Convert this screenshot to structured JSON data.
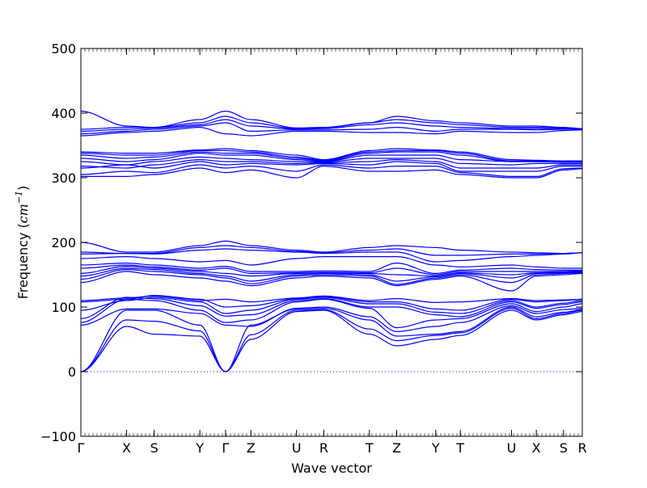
{
  "chart_data": {
    "type": "line",
    "xlabel": "Wave vector",
    "ylabel_prefix": "Frequency (",
    "ylabel_unit": "cm",
    "ylabel_exp": "−1",
    "ylabel_suffix": ")",
    "ylim": [
      -100,
      500
    ],
    "yticks": [
      -100,
      0,
      100,
      200,
      300,
      400,
      500
    ],
    "xlim": [
      0,
      1
    ],
    "grid": false,
    "legend": "none",
    "line_color": "#0000ff",
    "zero_line_color": "#0000ff",
    "high_symmetry_points": [
      {
        "label": "Γ",
        "x": 0.0
      },
      {
        "label": "X",
        "x": 0.0911
      },
      {
        "label": "S",
        "x": 0.1462
      },
      {
        "label": "Y",
        "x": 0.2373
      },
      {
        "label": "Γ",
        "x": 0.2885
      },
      {
        "label": "Z",
        "x": 0.3391
      },
      {
        "label": "U",
        "x": 0.4301
      },
      {
        "label": "R",
        "x": 0.4845
      },
      {
        "label": "T",
        "x": 0.5755
      },
      {
        "label": "Z",
        "x": 0.6299
      },
      {
        "label": "Y",
        "x": 0.7077
      },
      {
        "label": "T",
        "x": 0.7567
      },
      {
        "label": "U",
        "x": 0.8588
      },
      {
        "label": "X",
        "x": 0.9083
      },
      {
        "label": "S",
        "x": 0.9627
      },
      {
        "label": "R",
        "x": 1.0
      }
    ],
    "series": [
      {
        "values": [
          0,
          70,
          58,
          55,
          0,
          50,
          93,
          95,
          58,
          40,
          50,
          56,
          95,
          80,
          88,
          93
        ]
      },
      {
        "values": [
          0,
          80,
          78,
          63,
          0,
          57,
          95,
          96,
          66,
          48,
          56,
          60,
          98,
          82,
          90,
          95
        ]
      },
      {
        "values": [
          0,
          95,
          95,
          72,
          0,
          72,
          97,
          98,
          80,
          55,
          58,
          62,
          100,
          85,
          92,
          96
        ]
      },
      {
        "values": [
          72,
          97,
          97,
          90,
          72,
          70,
          98,
          100,
          85,
          62,
          70,
          76,
          102,
          90,
          96,
          98
        ]
      },
      {
        "values": [
          76,
          112,
          110,
          95,
          76,
          80,
          108,
          112,
          98,
          68,
          80,
          82,
          105,
          93,
          100,
          105
        ]
      },
      {
        "values": [
          82,
          115,
          113,
          102,
          86,
          88,
          110,
          113,
          100,
          100,
          88,
          85,
          108,
          98,
          104,
          108
        ]
      },
      {
        "values": [
          95,
          110,
          115,
          108,
          90,
          95,
          112,
          115,
          105,
          105,
          92,
          90,
          110,
          100,
          106,
          110
        ]
      },
      {
        "values": [
          108,
          112,
          118,
          112,
          100,
          102,
          113,
          116,
          108,
          108,
          97,
          95,
          112,
          108,
          110,
          112
        ]
      },
      {
        "values": [
          110,
          114,
          117,
          110,
          112,
          108,
          114,
          117,
          110,
          113,
          107,
          108,
          113,
          110,
          111,
          112
        ]
      },
      {
        "values": [
          138,
          155,
          150,
          145,
          140,
          133,
          145,
          148,
          145,
          133,
          143,
          148,
          125,
          148,
          150,
          152
        ]
      },
      {
        "values": [
          143,
          158,
          155,
          150,
          145,
          136,
          148,
          150,
          148,
          135,
          145,
          150,
          138,
          150,
          152,
          153
        ]
      },
      {
        "values": [
          148,
          160,
          158,
          152,
          148,
          140,
          150,
          152,
          150,
          140,
          147,
          152,
          145,
          152,
          153,
          154
        ]
      },
      {
        "values": [
          152,
          163,
          160,
          155,
          152,
          148,
          152,
          153,
          152,
          150,
          148,
          153,
          150,
          153,
          154,
          155
        ]
      },
      {
        "values": [
          160,
          165,
          162,
          157,
          160,
          152,
          153,
          154,
          153,
          160,
          150,
          155,
          155,
          155,
          155,
          156
        ]
      },
      {
        "values": [
          165,
          168,
          165,
          160,
          163,
          155,
          155,
          156,
          155,
          168,
          152,
          157,
          160,
          158,
          157,
          157
        ]
      },
      {
        "values": [
          175,
          178,
          175,
          170,
          172,
          165,
          175,
          178,
          178,
          178,
          165,
          162,
          165,
          162,
          160,
          160
        ]
      },
      {
        "values": [
          182,
          183,
          182,
          188,
          190,
          188,
          185,
          183,
          185,
          185,
          170,
          172,
          178,
          180,
          182,
          184
        ]
      },
      {
        "values": [
          185,
          183,
          183,
          192,
          195,
          192,
          186,
          184,
          188,
          190,
          180,
          180,
          182,
          182,
          183,
          184
        ]
      },
      {
        "values": [
          200,
          185,
          185,
          195,
          202,
          195,
          188,
          185,
          192,
          195,
          192,
          188,
          185,
          184,
          183,
          184
        ]
      },
      {
        "values": [
          302,
          302,
          305,
          315,
          308,
          312,
          300,
          318,
          310,
          310,
          312,
          305,
          300,
          300,
          312,
          314
        ]
      },
      {
        "values": [
          305,
          310,
          308,
          320,
          315,
          318,
          310,
          320,
          315,
          318,
          318,
          308,
          302,
          302,
          314,
          315
        ]
      },
      {
        "values": [
          315,
          320,
          315,
          325,
          320,
          322,
          320,
          322,
          320,
          325,
          322,
          310,
          310,
          310,
          318,
          318
        ]
      },
      {
        "values": [
          318,
          315,
          320,
          328,
          325,
          325,
          322,
          323,
          325,
          328,
          325,
          315,
          315,
          315,
          320,
          320
        ]
      },
      {
        "values": [
          325,
          320,
          325,
          332,
          330,
          328,
          325,
          324,
          330,
          330,
          330,
          322,
          320,
          322,
          322,
          322
        ]
      },
      {
        "values": [
          330,
          325,
          328,
          338,
          335,
          335,
          328,
          325,
          335,
          335,
          335,
          328,
          325,
          325,
          324,
          324
        ]
      },
      {
        "values": [
          335,
          330,
          332,
          340,
          338,
          338,
          330,
          326,
          338,
          340,
          340,
          335,
          325,
          325,
          325,
          325
        ]
      },
      {
        "values": [
          338,
          335,
          335,
          342,
          342,
          340,
          332,
          327,
          340,
          342,
          342,
          338,
          326,
          326,
          326,
          326
        ]
      },
      {
        "values": [
          340,
          338,
          338,
          343,
          345,
          342,
          335,
          328,
          342,
          345,
          343,
          340,
          328,
          327,
          326,
          326
        ]
      },
      {
        "values": [
          365,
          370,
          372,
          378,
          368,
          365,
          372,
          372,
          370,
          370,
          368,
          372,
          370,
          370,
          373,
          374
        ]
      },
      {
        "values": [
          368,
          372,
          375,
          380,
          385,
          372,
          374,
          374,
          375,
          378,
          372,
          375,
          375,
          374,
          375,
          375
        ]
      },
      {
        "values": [
          372,
          375,
          377,
          382,
          390,
          380,
          375,
          376,
          382,
          385,
          380,
          378,
          376,
          376,
          376,
          376
        ]
      },
      {
        "values": [
          375,
          378,
          378,
          385,
          395,
          385,
          376,
          377,
          385,
          390,
          385,
          382,
          378,
          378,
          377,
          376
        ]
      },
      {
        "values": [
          403,
          380,
          378,
          390,
          403,
          390,
          377,
          378,
          385,
          395,
          388,
          385,
          380,
          380,
          378,
          376
        ]
      }
    ]
  }
}
